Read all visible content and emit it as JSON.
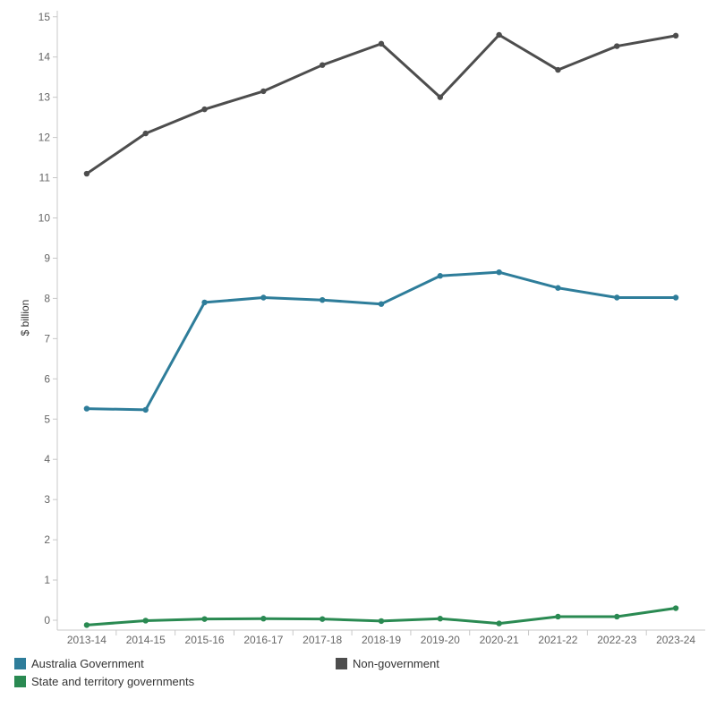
{
  "chart_data": {
    "type": "line",
    "ylabel": "$ billion",
    "ylim": [
      -0.2,
      15.3
    ],
    "yticks": [
      0,
      1,
      2,
      3,
      4,
      5,
      6,
      7,
      8,
      9,
      10,
      11,
      12,
      13,
      14,
      15
    ],
    "categories": [
      "2013-14",
      "2014-15",
      "2015-16",
      "2016-17",
      "2017-18",
      "2018-19",
      "2019-20",
      "2020-21",
      "2021-22",
      "2022-23",
      "2023-24"
    ],
    "series": [
      {
        "name": "Non-government",
        "color": "#4d4d4d",
        "values": [
          11.1,
          12.1,
          12.7,
          13.15,
          13.8,
          14.33,
          13.0,
          14.55,
          13.68,
          14.27,
          14.53
        ]
      },
      {
        "name": "Australia Government",
        "color": "#2e7d9a",
        "values": [
          5.26,
          5.23,
          7.9,
          8.02,
          7.96,
          7.86,
          8.56,
          8.65,
          8.26,
          8.02,
          8.02
        ]
      },
      {
        "name": "State and territory governments",
        "color": "#2a8a52",
        "values": [
          -0.12,
          -0.01,
          0.03,
          0.04,
          0.03,
          -0.02,
          0.04,
          -0.08,
          0.09,
          0.09,
          0.3
        ]
      }
    ],
    "grid": false,
    "legend_position": "bottom"
  },
  "legend": {
    "items": [
      {
        "label": "Australia Government",
        "color": "#2e7d9a"
      },
      {
        "label": "Non-government",
        "color": "#4d4d4d"
      },
      {
        "label": "State and territory governments",
        "color": "#2a8a52"
      }
    ]
  }
}
